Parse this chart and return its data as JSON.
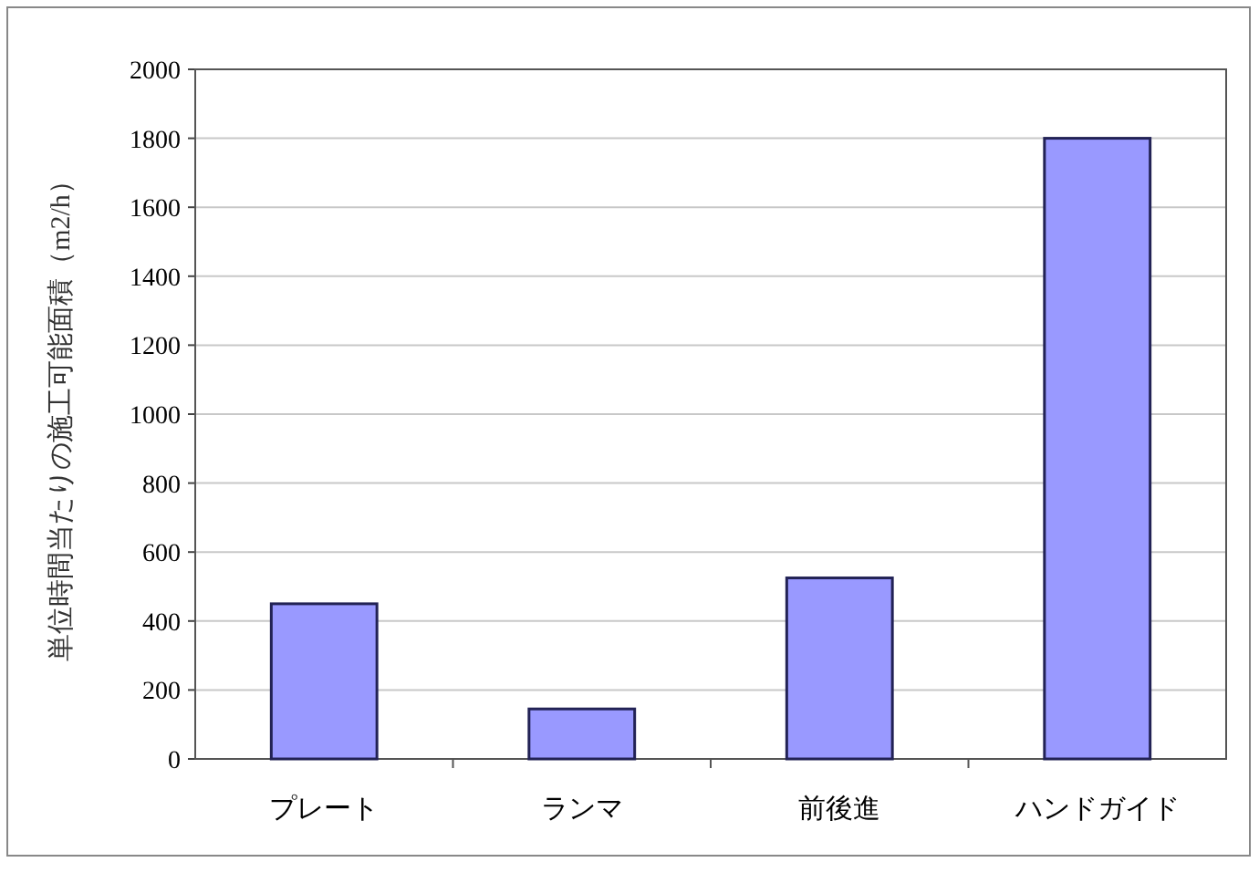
{
  "chart_data": {
    "type": "bar",
    "ylabel": "単位時間当たりの施工可能面積（m2/h）",
    "categories": [
      "プレート",
      "ランマ",
      "前後進",
      "ハンドガイド"
    ],
    "values": [
      450,
      145,
      525,
      1800
    ],
    "color": "#9999ff",
    "ylim": [
      0,
      2000
    ],
    "yticks": [
      0,
      200,
      400,
      600,
      800,
      1000,
      1200,
      1400,
      1600,
      1800,
      2000
    ],
    "grid": "y"
  }
}
